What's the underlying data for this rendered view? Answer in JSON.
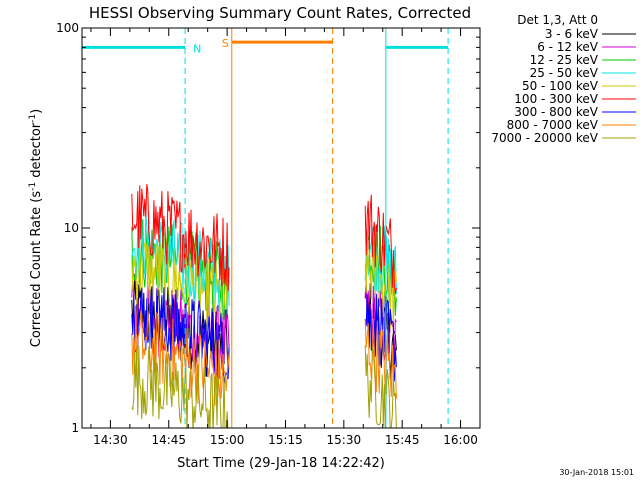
{
  "chart_data": {
    "type": "line",
    "title": "HESSI Observing Summary Count Rates, Corrected",
    "xlabel": "Start Time (29-Jan-18 14:22:42)",
    "ylabel_main": "Corrected Count Rate (s",
    "ylabel_sup1": "-1",
    "ylabel_mid": " detector",
    "ylabel_sup2": "-1",
    "ylabel_end": ")",
    "y_scale": "log",
    "ylim": [
      1,
      100
    ],
    "xlim_minutes": [
      862.7,
      965
    ],
    "x_ticks": [
      {
        "t": 870,
        "label": "14:30"
      },
      {
        "t": 885,
        "label": "14:45"
      },
      {
        "t": 900,
        "label": "15:00"
      },
      {
        "t": 915,
        "label": "15:15"
      },
      {
        "t": 930,
        "label": "15:30"
      },
      {
        "t": 945,
        "label": "15:45"
      },
      {
        "t": 960,
        "label": "16:00"
      }
    ],
    "y_ticks": [
      {
        "v": 1,
        "label": "1"
      },
      {
        "v": 10,
        "label": "10"
      },
      {
        "v": 100,
        "label": "100"
      }
    ],
    "legend_title": "Det 1,3, Att 0",
    "legend_position": "right",
    "series": [
      {
        "name": "3 - 6 keV",
        "color": "#000000",
        "segments": [
          [
            875.5,
            900.5,
            3.8
          ],
          [
            935.5,
            943.5,
            3.8
          ]
        ]
      },
      {
        "name": "6 - 12 keV",
        "color": "#d400d4",
        "segments": [
          [
            875.5,
            900.5,
            3.9
          ],
          [
            935.5,
            943.5,
            3.9
          ]
        ]
      },
      {
        "name": "12 - 25 keV",
        "color": "#00c800",
        "segments": [
          [
            875.5,
            900.5,
            8.0
          ],
          [
            935.5,
            943.5,
            8.5
          ]
        ]
      },
      {
        "name": "25 - 50 keV",
        "color": "#00e6e6",
        "segments": [
          [
            875.5,
            900.5,
            8.5
          ],
          [
            935.5,
            943.5,
            8.5
          ]
        ]
      },
      {
        "name": "50 - 100 keV",
        "color": "#d2c800",
        "segments": [
          [
            875.5,
            900.5,
            6.5
          ],
          [
            935.5,
            943.5,
            6.5
          ]
        ]
      },
      {
        "name": "100 - 300 keV",
        "color": "#ff0000",
        "segments": [
          [
            875.5,
            900.5,
            11.5
          ],
          [
            935.5,
            943.5,
            11.0
          ]
        ]
      },
      {
        "name": "300 - 800 keV",
        "color": "#0000ff",
        "segments": [
          [
            875.5,
            900.5,
            3.8
          ],
          [
            935.5,
            943.5,
            3.8
          ]
        ]
      },
      {
        "name": "800 - 7000 keV",
        "color": "#ff8000",
        "segments": [
          [
            875.5,
            900.5,
            2.7
          ],
          [
            935.5,
            943.5,
            2.7
          ]
        ]
      },
      {
        "name": "7000 - 20000 keV",
        "color": "#a0a000",
        "segments": [
          [
            875.5,
            900.5,
            1.8
          ],
          [
            935.5,
            943.5,
            1.8
          ]
        ]
      }
    ],
    "flags": [
      {
        "label": "N",
        "color": "#00e0e0",
        "spans": [
          [
            862.7,
            889.2
          ],
          [
            940.8,
            956.8
          ]
        ],
        "boundaries": [
          889.2,
          940.8,
          956.8
        ],
        "level": 80
      },
      {
        "label": "S",
        "color": "#ff8000",
        "spans": [
          [
            901.2,
            927.1
          ]
        ],
        "boundaries": [
          901.2,
          927.1
        ],
        "level": 85
      }
    ],
    "grid": false
  },
  "footer": {
    "date_stamp": "30-Jan-2018 15:01"
  }
}
